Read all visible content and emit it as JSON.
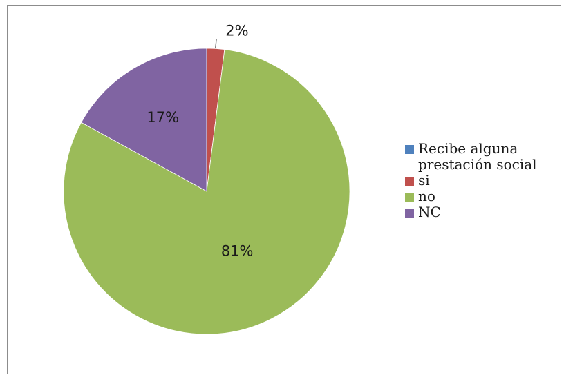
{
  "chart_data": {
    "type": "pie",
    "legend_position": "right",
    "series_name": "Recibe alguna prestación social",
    "slices": [
      {
        "label": "si",
        "value": 2,
        "data_label": "2%",
        "color": "#c0504d"
      },
      {
        "label": "no",
        "value": 81,
        "data_label": "81%",
        "color": "#9bbb59"
      },
      {
        "label": "NC",
        "value": 17,
        "data_label": "17%",
        "color": "#8064a2"
      }
    ],
    "legend": [
      {
        "label": "Recibe alguna prestación social",
        "color": "#4f81bd"
      },
      {
        "label": "si",
        "color": "#c0504d"
      },
      {
        "label": "no",
        "color": "#9bbb59"
      },
      {
        "label": "NC",
        "color": "#8064a2"
      }
    ]
  }
}
